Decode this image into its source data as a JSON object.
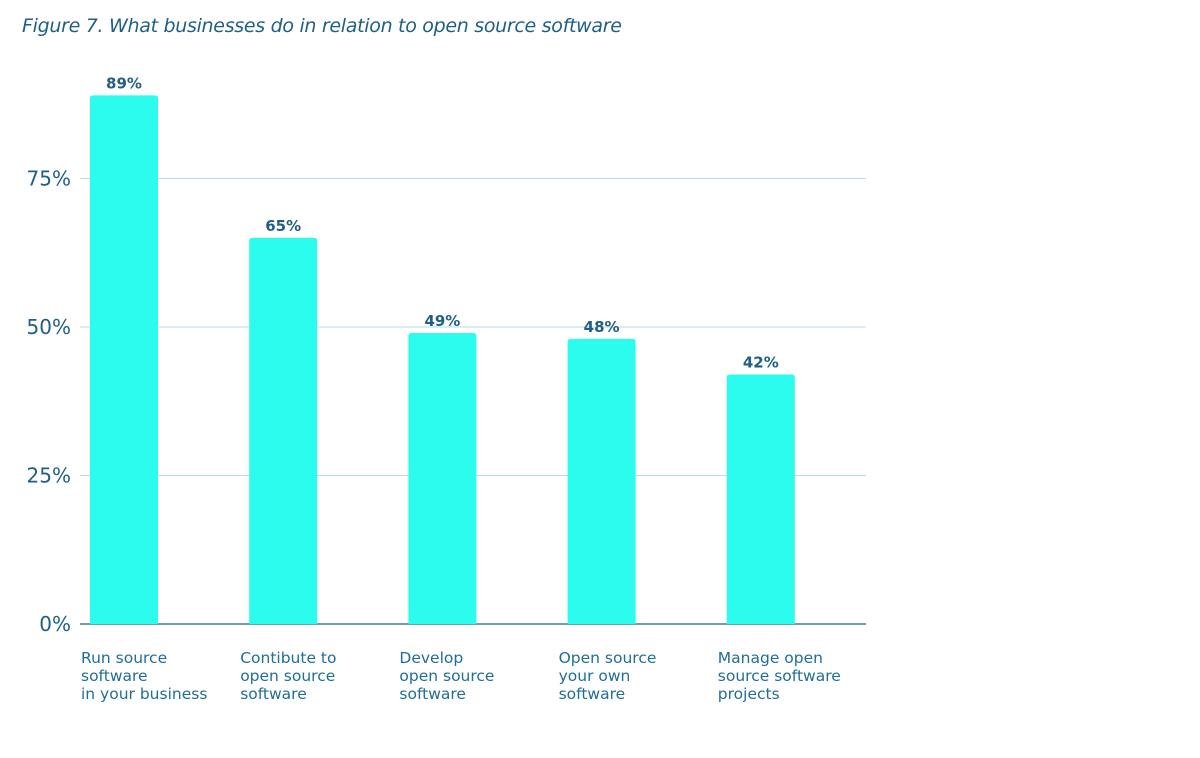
{
  "chart_data": {
    "type": "bar",
    "title": "Figure 7. What businesses do in relation to open source software",
    "categories": [
      [
        "Run source",
        "software",
        "in your business"
      ],
      [
        "Contibute to",
        "open source",
        "software"
      ],
      [
        "Develop",
        "open source",
        "software"
      ],
      [
        "Open source",
        "your own",
        "software"
      ],
      [
        "Manage open",
        "source software",
        "projects"
      ]
    ],
    "values": [
      89,
      65,
      49,
      48,
      42
    ],
    "value_labels": [
      "89%",
      "65%",
      "49%",
      "48%",
      "42%"
    ],
    "y_ticks": [
      0,
      25,
      50,
      75
    ],
    "y_tick_labels": [
      "0%",
      "25%",
      "50%",
      "75%"
    ],
    "ylim": [
      0,
      100
    ],
    "grid": true,
    "colors": {
      "bar": "#2bfcee",
      "grid": "#b7dbe8",
      "axis": "#1f5f86",
      "text": "#1f5f86"
    }
  }
}
